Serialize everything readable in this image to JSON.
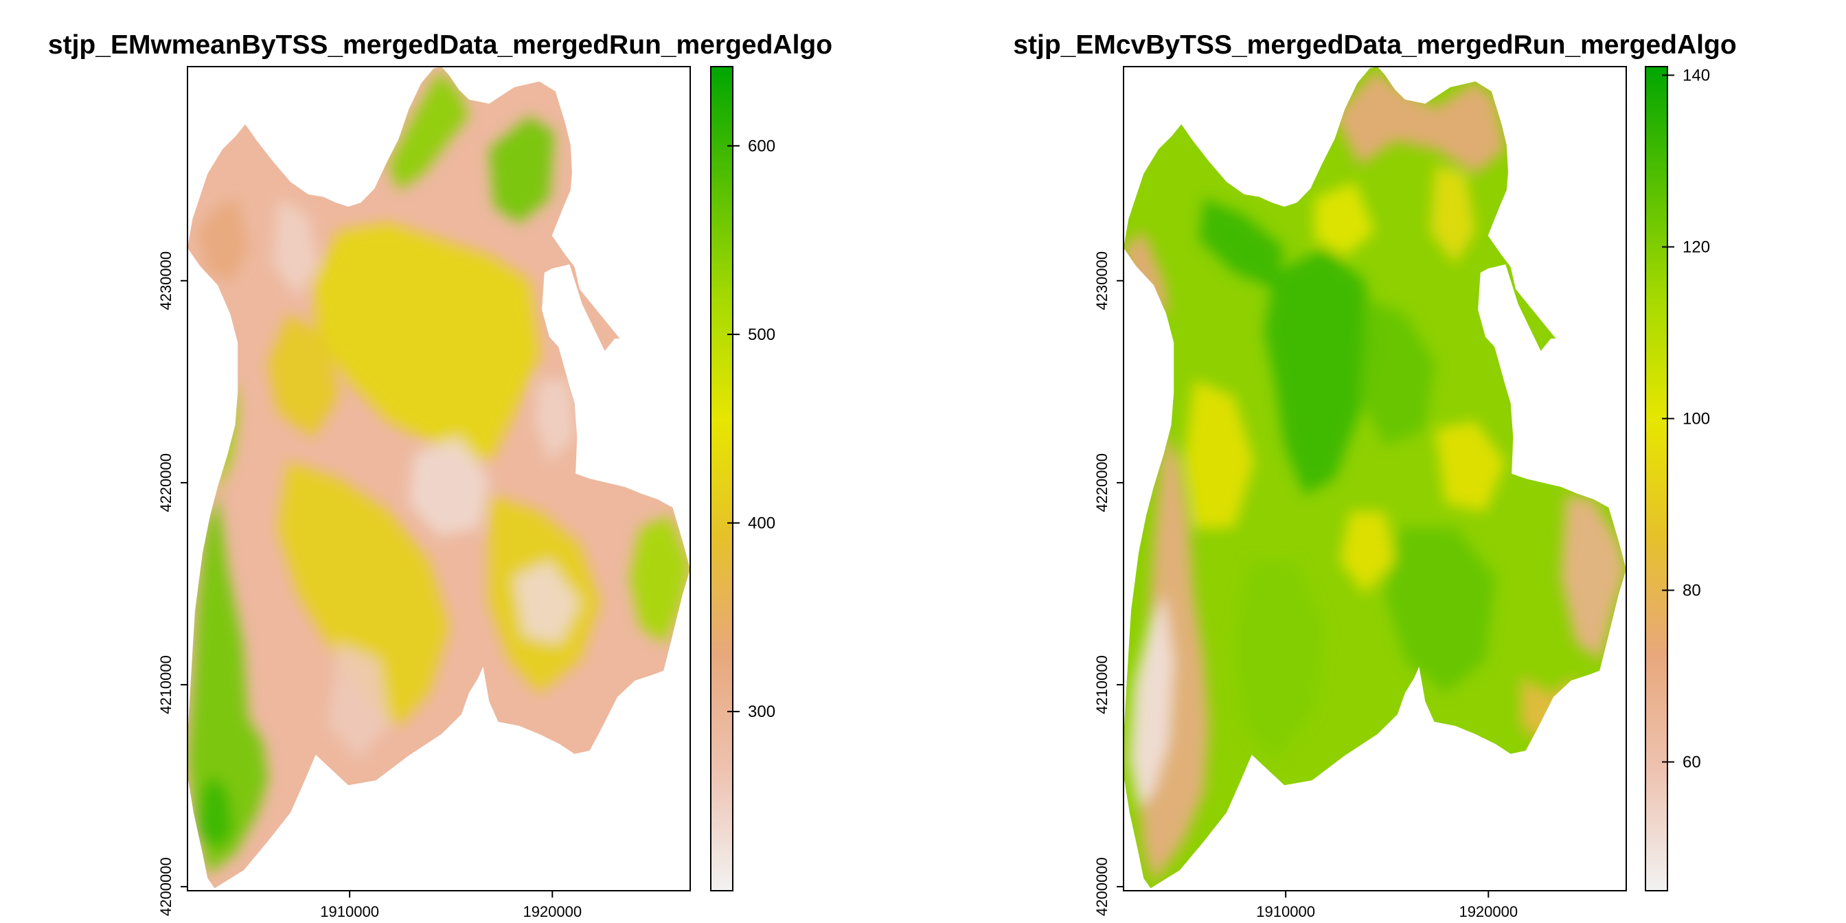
{
  "chart_data": [
    {
      "type": "heatmap",
      "title": "stjp_EMwmeanByTSS_mergedData_mergedRun_mergedAlgo",
      "x_ticks": [
        1910000,
        1920000
      ],
      "y_ticks": [
        4200000,
        4210000,
        4220000,
        4230000
      ],
      "xlim": [
        1902000,
        1926800
      ],
      "ylim": [
        4199800,
        4240600
      ],
      "legend": {
        "position": "right",
        "min": 205,
        "max": 642,
        "ticks": [
          300,
          400,
          500,
          600
        ],
        "colors": [
          "#F2F2F2",
          "#EEC3B1",
          "#E8A87C",
          "#E6C12A",
          "#E6E600",
          "#A8DA00",
          "#56C000",
          "#00A600"
        ]
      },
      "surface": {
        "base": "#EDB89E",
        "features": [
          {
            "name": "western-ridge-green",
            "mean_value": 560
          },
          {
            "name": "northern-summit-green",
            "mean_value": 540
          },
          {
            "name": "eastern-edge-green",
            "mean_value": 520
          },
          {
            "name": "central-yellow-mosaic",
            "mean_value": 420
          },
          {
            "name": "valley-floor-pale",
            "mean_value": 240
          }
        ]
      }
    },
    {
      "type": "heatmap",
      "title": "stjp_EMcvByTSS_mergedData_mergedRun_mergedAlgo",
      "x_ticks": [
        1910000,
        1920000
      ],
      "y_ticks": [
        4200000,
        4210000,
        4220000,
        4230000
      ],
      "xlim": [
        1902000,
        1926800
      ],
      "ylim": [
        4199800,
        4240600
      ],
      "legend": {
        "position": "right",
        "min": 45,
        "max": 141,
        "ticks": [
          60,
          80,
          100,
          120,
          140
        ],
        "colors": [
          "#F2F2F2",
          "#EEC3B1",
          "#E8A87C",
          "#E6C12A",
          "#E6E600",
          "#A8DA00",
          "#56C000",
          "#00A600"
        ]
      },
      "surface": {
        "base": "#8ED000",
        "features": [
          {
            "name": "central-valley-deep-green",
            "mean_value": 132
          },
          {
            "name": "yellow-bands",
            "mean_value": 98
          },
          {
            "name": "western-ridge-orange",
            "mean_value": 70
          },
          {
            "name": "northern-peaks-orange",
            "mean_value": 72
          },
          {
            "name": "eastern-edge-orange",
            "mean_value": 68
          },
          {
            "name": "southwest-pale",
            "mean_value": 50
          }
        ]
      }
    }
  ]
}
